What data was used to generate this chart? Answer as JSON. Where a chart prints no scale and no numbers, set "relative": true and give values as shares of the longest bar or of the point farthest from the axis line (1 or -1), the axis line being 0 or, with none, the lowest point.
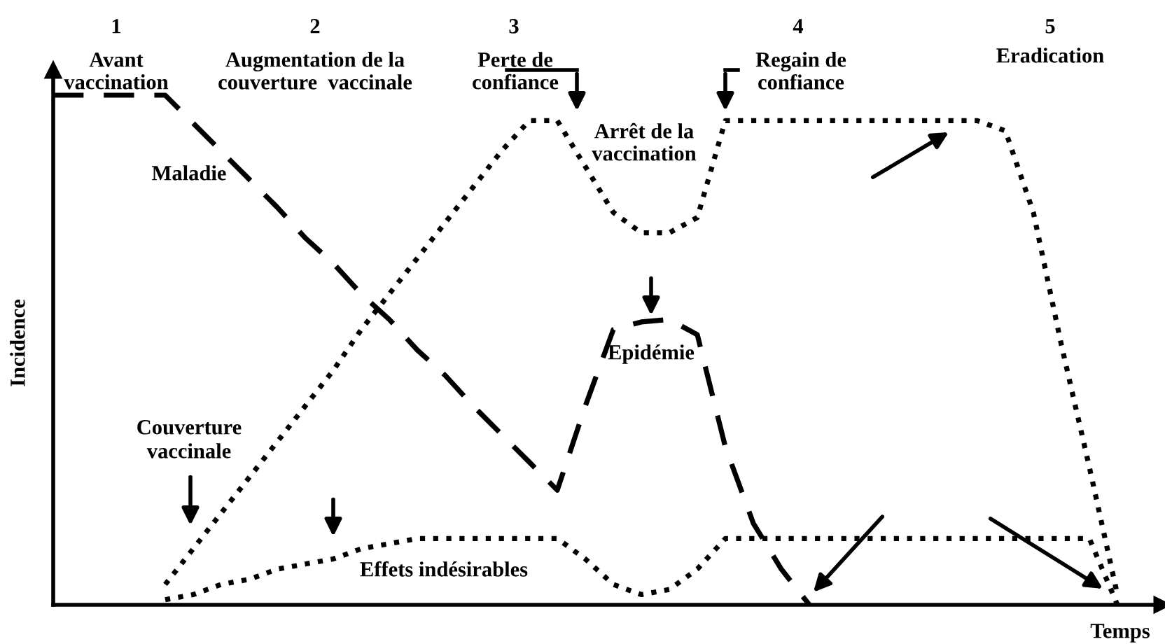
{
  "chart_data": {
    "type": "line",
    "relative": true,
    "xlabel": "Temps",
    "ylabel": "Incidence",
    "tick_labels": false,
    "legend": false,
    "marker": "none",
    "categories": [
      null,
      null,
      null,
      null,
      null,
      null,
      null,
      null,
      null,
      null,
      null,
      null,
      null,
      null,
      null,
      null,
      null,
      null,
      null,
      null,
      null,
      null,
      null,
      null,
      null,
      null,
      null,
      null,
      null,
      null,
      null,
      null,
      null,
      null,
      null,
      null,
      null,
      null,
      null,
      null
    ],
    "series": [
      {
        "name": "Maladie",
        "color": "#000000",
        "line_style": "dashed",
        "values": [
          1.0,
          1.0,
          1.0,
          1.0,
          1.0,
          0.945,
          0.89,
          0.835,
          0.78,
          0.72,
          0.67,
          0.61,
          0.56,
          0.5,
          0.45,
          0.39,
          0.335,
          0.28,
          0.225,
          0.39,
          0.54,
          0.555,
          0.56,
          0.53,
          0.31,
          0.16,
          0.07,
          0,
          null,
          null,
          null,
          null,
          null,
          null,
          null,
          null,
          null,
          null,
          null,
          null
        ]
      },
      {
        "name": "Couverture\nvaccinale",
        "color": "#000000",
        "line_style": "dotted",
        "values": [
          null,
          null,
          null,
          null,
          0.04,
          0.11,
          0.18,
          0.25,
          0.32,
          0.39,
          0.46,
          0.54,
          0.61,
          0.68,
          0.75,
          0.82,
          0.89,
          0.95,
          0.95,
          0.86,
          0.77,
          0.73,
          0.73,
          0.76,
          0.95,
          0.95,
          0.95,
          0.95,
          0.95,
          0.95,
          0.95,
          0.95,
          0.95,
          0.95,
          0.93,
          0.77,
          0.51,
          0.27,
          0.02,
          null
        ]
      },
      {
        "name": "Effets indésirables",
        "color": "#000000",
        "line_style": "dotted",
        "values": [
          null,
          null,
          null,
          null,
          0.01,
          0.02,
          0.04,
          0.05,
          0.07,
          0.08,
          0.09,
          0.11,
          0.12,
          0.13,
          0.13,
          0.13,
          0.13,
          0.13,
          0.13,
          0.09,
          0.04,
          0.02,
          0.03,
          0.07,
          0.13,
          0.13,
          0.13,
          0.13,
          0.13,
          0.13,
          0.13,
          0.13,
          0.13,
          0.13,
          0.13,
          0.13,
          0.13,
          0.13,
          0,
          null
        ]
      }
    ],
    "annotations": [
      "1",
      "Avant\nvaccination",
      "2",
      "Augmentation de la\ncouverture  vaccinale",
      "3",
      "Perte de\nconfiance",
      "4",
      "Regain de\nconfiance",
      "5",
      "Eradication",
      "Arrêt de la\nvaccination",
      "Epidémie"
    ]
  }
}
